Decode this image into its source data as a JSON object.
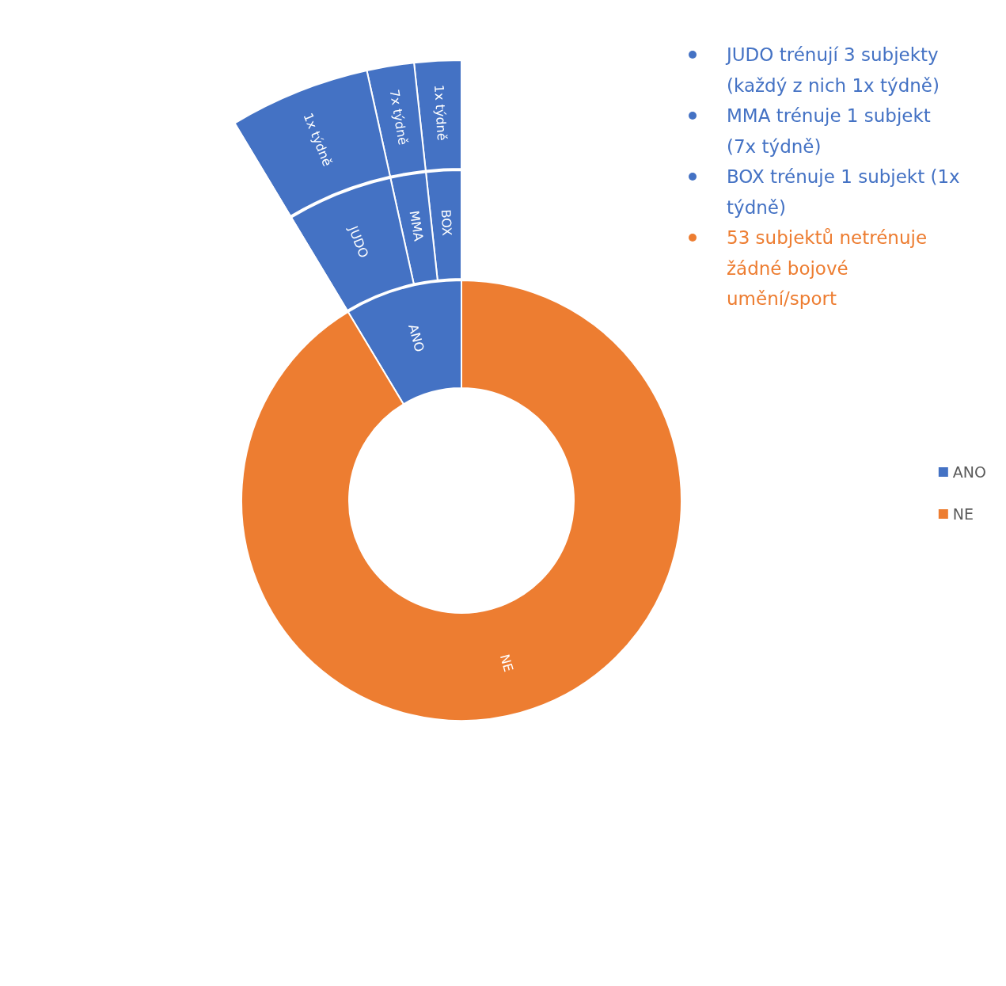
{
  "chart_data": [
    {
      "type": "donut",
      "categories": [
        "ANO",
        "NE"
      ],
      "values": [
        8.62,
        91.38
      ],
      "colors": [
        "#4472c4",
        "#ed7d31"
      ],
      "data_labels": false,
      "legend": "right",
      "annotations": [
        "JUDO trénují 3 subjekty (každý z nich 1x týdně)",
        "MMA trénuje 1 subjekt (7x týdně)",
        "BOX trénuje 1 subjekt (1x týdně)",
        "53 subjektů netrénuje žádné bojové umění/sport"
      ]
    },
    {
      "type": "donut",
      "categories": [
        "BOX",
        "MMA",
        "JUDO",
        null
      ],
      "values": [
        1.72,
        1.73,
        5.17,
        91.38
      ],
      "colors": [
        "#4472c4",
        "#4472c4",
        "#4472c4",
        "#ffffff"
      ]
    },
    {
      "type": "donut",
      "categories": [
        "1x týdně",
        "7x týdně",
        "1x týdně",
        null
      ],
      "values": [
        1.72,
        1.73,
        5.17,
        91.38
      ],
      "colors": [
        "#4472c4",
        "#4472c4",
        "#4472c4",
        "#ffffff"
      ]
    }
  ]
}
